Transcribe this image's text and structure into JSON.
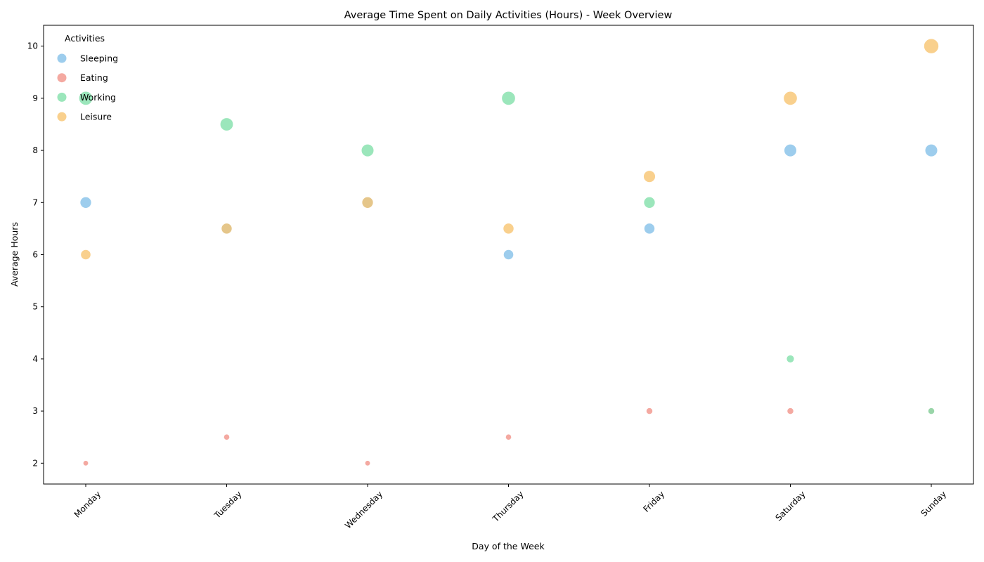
{
  "chart_data": {
    "type": "scatter",
    "title": "Average Time Spent on Daily Activities (Hours) - Week Overview",
    "xlabel": "Day of the Week",
    "ylabel": "Average Hours",
    "categories": [
      "Monday",
      "Tuesday",
      "Wednesday",
      "Thursday",
      "Friday",
      "Saturday",
      "Sunday"
    ],
    "ylim": [
      1.6,
      10.4
    ],
    "yticks": [
      2,
      3,
      4,
      5,
      6,
      7,
      8,
      9,
      10
    ],
    "grid": false,
    "legend": {
      "title": "Activities",
      "placement": "top-left"
    },
    "series": [
      {
        "name": "Sleeping",
        "color": "#85c1e9",
        "values": [
          7,
          6.5,
          7,
          6,
          6.5,
          8,
          8
        ]
      },
      {
        "name": "Eating",
        "color": "#f1948a",
        "values": [
          2,
          2.5,
          2,
          2.5,
          3,
          3,
          3
        ]
      },
      {
        "name": "Working",
        "color": "#82e0aa",
        "values": [
          9,
          8.5,
          8,
          9,
          7,
          4,
          3
        ]
      },
      {
        "name": "Leisure",
        "color": "#f8c471",
        "values": [
          6,
          6.5,
          7,
          6.5,
          7.5,
          9,
          10
        ]
      }
    ]
  }
}
